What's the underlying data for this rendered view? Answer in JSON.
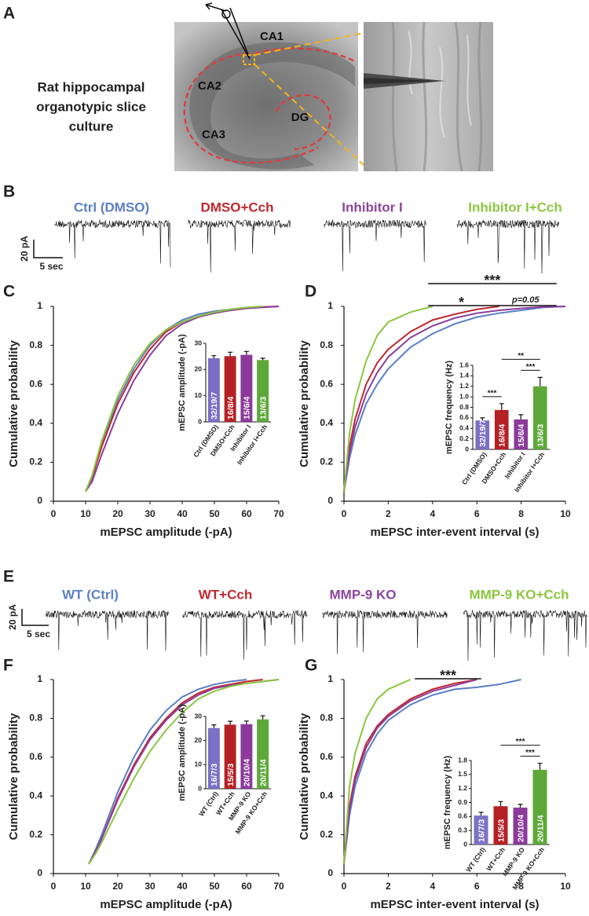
{
  "slice": {
    "panel": "A",
    "caption": [
      "Rat hippocampal",
      "organotypic slice",
      "culture"
    ],
    "regions": [
      "CA1",
      "CA2",
      "CA3",
      "DG"
    ]
  },
  "recordings": [
    {
      "panel": "B",
      "labels": [
        "Ctrl (DMSO)",
        "DMSO+Cch",
        "Inhibitor I",
        "Inhibitor I+Cch"
      ],
      "colors": [
        "#5b80c6",
        "#c1272d",
        "#8e44a0",
        "#8cc63f"
      ],
      "scale_current": "20 pA",
      "scale_time": "5 sec"
    },
    {
      "panel": "E",
      "labels": [
        "WT (Ctrl)",
        "WT+Cch",
        "MMP-9 KO",
        "MMP-9 KO+Cch"
      ],
      "colors": [
        "#5b80c6",
        "#c1272d",
        "#8e44a0",
        "#8cc63f"
      ],
      "scale_current": "20 pA",
      "scale_time": "5 sec"
    }
  ],
  "chart_data": [
    {
      "panel": "C",
      "type": "line",
      "x": [
        10,
        12,
        15,
        20,
        25,
        30,
        35,
        40,
        45,
        50,
        55,
        60,
        65,
        70
      ],
      "series": [
        {
          "color": "#5a7fc5",
          "values": [
            0.05,
            0.13,
            0.3,
            0.52,
            0.68,
            0.8,
            0.88,
            0.93,
            0.96,
            0.975,
            0.985,
            0.993,
            1.0,
            null
          ]
        },
        {
          "color": "#c1272d",
          "values": [
            0.05,
            0.12,
            0.28,
            0.5,
            0.66,
            0.78,
            0.87,
            0.92,
            0.95,
            0.97,
            0.98,
            0.99,
            0.997,
            1.0
          ]
        },
        {
          "color": "#8c3d9c",
          "values": [
            0.05,
            0.1,
            0.24,
            0.45,
            0.62,
            0.75,
            0.85,
            0.91,
            0.945,
            0.965,
            0.98,
            0.99,
            0.995,
            1.0
          ]
        },
        {
          "color": "#8cc63f",
          "values": [
            0.05,
            0.13,
            0.31,
            0.54,
            0.7,
            0.81,
            0.88,
            0.92,
            0.95,
            0.97,
            0.985,
            0.995,
            1.0,
            null
          ]
        }
      ],
      "xlim": [
        0,
        70
      ],
      "xticks": [
        0,
        10,
        20,
        30,
        40,
        50,
        60,
        70
      ],
      "ylim": [
        0,
        1
      ],
      "yticks": [
        0,
        0.2,
        0.4,
        0.6,
        0.8,
        1
      ],
      "xlabel": "mEPSC amplitude (-pA)",
      "ylabel": "Cumulative probability"
    },
    {
      "type": "bar",
      "categories": [
        "Ctrl (DMSO)",
        "DMSO+Cch",
        "Inhibitor I",
        "Inhibitor I+Cch"
      ],
      "values": [
        24.3,
        25.1,
        25.6,
        23.6
      ],
      "errors": [
        1.0,
        1.5,
        1.3,
        0.7
      ],
      "n_labels": [
        "32/19/7",
        "16/8/4",
        "15/6/4",
        "13/6/3"
      ],
      "colors": [
        "#7a6fc4",
        "#b52025",
        "#8b3a9a",
        "#5ea83a"
      ],
      "ylim": [
        0,
        30
      ],
      "yticks": [
        0,
        10,
        20,
        30
      ],
      "ylabel": "mEPSC amplitude (-pA)"
    },
    {
      "panel": "D",
      "type": "line",
      "x": [
        0,
        0.25,
        0.5,
        1,
        1.5,
        2,
        3,
        4,
        5,
        6,
        7,
        8,
        9,
        10
      ],
      "series": [
        {
          "color": "#5a7fc5",
          "values": [
            0.05,
            0.22,
            0.34,
            0.5,
            0.6,
            0.68,
            0.79,
            0.86,
            0.91,
            0.945,
            0.965,
            0.98,
            0.995,
            1.0
          ]
        },
        {
          "color": "#c1272d",
          "values": [
            0.05,
            0.28,
            0.42,
            0.6,
            0.71,
            0.78,
            0.87,
            0.93,
            0.96,
            0.985,
            1.0,
            null,
            null,
            null
          ]
        },
        {
          "color": "#8c3d9c",
          "values": [
            0.05,
            0.25,
            0.38,
            0.55,
            0.66,
            0.74,
            0.84,
            0.9,
            0.94,
            0.965,
            0.98,
            0.99,
            0.997,
            1.0
          ]
        },
        {
          "color": "#8cc63f",
          "values": [
            0.05,
            0.35,
            0.52,
            0.72,
            0.85,
            0.92,
            0.97,
            1.0,
            null,
            null,
            null,
            null,
            null,
            null
          ]
        }
      ],
      "xlim": [
        0,
        10
      ],
      "xticks": [
        0,
        2,
        4,
        6,
        8,
        10
      ],
      "ylim": [
        0,
        1
      ],
      "yticks": [
        0,
        0.2,
        0.4,
        0.6,
        0.8,
        1
      ],
      "xlabel": "mEPSC inter-event interval (s)",
      "ylabel": "Cumulative probability",
      "significance": [
        {
          "label": "*",
          "x_span": [
            3.8,
            6.8
          ]
        },
        {
          "label": "p=0.05",
          "x_span": [
            6.8,
            9.6
          ]
        },
        {
          "label": "***",
          "x_span": [
            3.8,
            9.6
          ]
        }
      ]
    },
    {
      "type": "bar",
      "categories": [
        "Ctrl (DMSO)",
        "DMSO+Cch",
        "Inhibitor I",
        "Inhibitor I+Cch"
      ],
      "values": [
        0.55,
        0.75,
        0.57,
        1.2
      ],
      "errors": [
        0.05,
        0.12,
        0.09,
        0.17
      ],
      "n_labels": [
        "32/19/7",
        "16/8/4",
        "15/6/4",
        "13/6/3"
      ],
      "colors": [
        "#7a6fc4",
        "#b52025",
        "#8b3a9a",
        "#5ea83a"
      ],
      "ylim": [
        0,
        1.6
      ],
      "yticks": [
        0,
        0.2,
        0.4,
        0.6,
        0.8,
        {
          "value": 1.0,
          "label": "1.0"
        },
        1.2,
        1.4,
        1.6
      ],
      "ylabel": "mEPSC frequency (Hz)",
      "significance": [
        {
          "label": "***",
          "between": [
            "Ctrl (DMSO)",
            "DMSO+Cch"
          ]
        },
        {
          "label": "***",
          "between": [
            "Inhibitor I",
            "Inhibitor I+Cch"
          ]
        },
        {
          "label": "**",
          "between": [
            "DMSO+Cch",
            "Inhibitor I+Cch"
          ]
        }
      ]
    },
    {
      "panel": "F",
      "type": "line",
      "x": [
        11,
        13,
        15,
        20,
        25,
        30,
        35,
        40,
        45,
        50,
        55,
        60,
        65,
        70
      ],
      "series": [
        {
          "color": "#5a7fc5",
          "values": [
            0.05,
            0.12,
            0.2,
            0.42,
            0.6,
            0.74,
            0.84,
            0.91,
            0.95,
            0.975,
            0.99,
            1.0,
            null,
            null
          ]
        },
        {
          "color": "#c1272d",
          "values": [
            0.05,
            0.11,
            0.18,
            0.39,
            0.56,
            0.7,
            0.8,
            0.88,
            0.93,
            0.96,
            0.975,
            0.99,
            1.0,
            null
          ]
        },
        {
          "color": "#8c3d9c",
          "values": [
            0.05,
            0.11,
            0.18,
            0.38,
            0.55,
            0.69,
            0.79,
            0.87,
            0.92,
            0.955,
            0.97,
            0.98,
            0.99,
            1.0
          ]
        },
        {
          "color": "#8cc63f",
          "values": [
            0.05,
            0.1,
            0.16,
            0.33,
            0.49,
            0.63,
            0.74,
            0.83,
            0.9,
            0.94,
            0.965,
            0.98,
            0.99,
            1.0
          ]
        }
      ],
      "xlim": [
        0,
        70
      ],
      "xticks": [
        0,
        10,
        20,
        30,
        40,
        50,
        60,
        70
      ],
      "ylim": [
        0,
        1
      ],
      "yticks": [
        0,
        0.2,
        0.4,
        0.6,
        0.8,
        1
      ],
      "xlabel": "mEPSC amplitude (-pA)",
      "ylabel": "Cumulative probability"
    },
    {
      "type": "bar",
      "categories": [
        "WT (Ctrl)",
        "WT+Cch",
        "MMP-9 KO",
        "MMP-9 KO+Cch"
      ],
      "values": [
        25.2,
        26.6,
        26.8,
        28.8
      ],
      "errors": [
        1.3,
        1.4,
        1.3,
        1.5
      ],
      "n_labels": [
        "16/7/3",
        "15/5/3",
        "20/10/4",
        "20/11/4"
      ],
      "colors": [
        "#7b72c6",
        "#b52025",
        "#8b3a9a",
        "#5ea83a"
      ],
      "ylim": [
        0,
        30
      ],
      "yticks": [
        0,
        10,
        20,
        30
      ],
      "ylabel": "mEPSC amplitude (-pA)"
    },
    {
      "panel": "G",
      "type": "line",
      "x": [
        0,
        0.25,
        0.5,
        1,
        1.5,
        2,
        3,
        4,
        5,
        6,
        7,
        8,
        9,
        10
      ],
      "series": [
        {
          "color": "#5a7fc5",
          "values": [
            0.05,
            0.3,
            0.45,
            0.62,
            0.72,
            0.79,
            0.87,
            0.92,
            0.95,
            0.96,
            0.975,
            1.0,
            null,
            null
          ]
        },
        {
          "color": "#c1272d",
          "values": [
            0.05,
            0.35,
            0.5,
            0.67,
            0.76,
            0.82,
            0.9,
            0.95,
            0.98,
            1.0,
            null,
            null,
            null,
            null
          ]
        },
        {
          "color": "#8c3d9c",
          "values": [
            0.05,
            0.33,
            0.48,
            0.65,
            0.75,
            0.81,
            0.89,
            0.94,
            0.97,
            1.0,
            null,
            null,
            null,
            null
          ]
        },
        {
          "color": "#8cc63f",
          "values": [
            0.05,
            0.45,
            0.62,
            0.8,
            0.9,
            0.95,
            1.0,
            null,
            null,
            null,
            null,
            null,
            null,
            null
          ]
        }
      ],
      "xlim": [
        0,
        10
      ],
      "xticks": [
        0,
        2,
        4,
        6,
        8,
        10
      ],
      "ylim": [
        0,
        1
      ],
      "yticks": [
        0,
        0.2,
        0.4,
        0.6,
        0.8,
        1
      ],
      "xlabel": "mEPSC inter-event interval (s)",
      "ylabel": "Cumulative probability",
      "significance": [
        {
          "label": "***",
          "x_span": [
            3.2,
            6.2
          ]
        }
      ]
    },
    {
      "type": "bar",
      "categories": [
        "WT (Ctrl)",
        "WT+Cch",
        "MMP-9 KO",
        "MMP-9 KO+Cch"
      ],
      "values": [
        0.62,
        0.82,
        0.79,
        1.6
      ],
      "errors": [
        0.07,
        0.1,
        0.07,
        0.14
      ],
      "n_labels": [
        "16/7/3",
        "15/5/3",
        "20/10/4",
        "20/11/4"
      ],
      "colors": [
        "#7b72c6",
        "#b52025",
        "#8b3a9a",
        "#5ea83a"
      ],
      "ylim": [
        0,
        1.8
      ],
      "yticks": [
        0,
        0.3,
        0.6,
        0.9,
        1.2,
        1.5,
        1.8
      ],
      "ylabel": "mEPSC frequency (Hz)",
      "significance": [
        {
          "label": "***",
          "between": [
            "MMP-9 KO",
            "MMP-9 KO+Cch"
          ]
        },
        {
          "label": "***",
          "between": [
            "WT+Cch",
            "MMP-9 KO+Cch"
          ]
        }
      ]
    }
  ]
}
